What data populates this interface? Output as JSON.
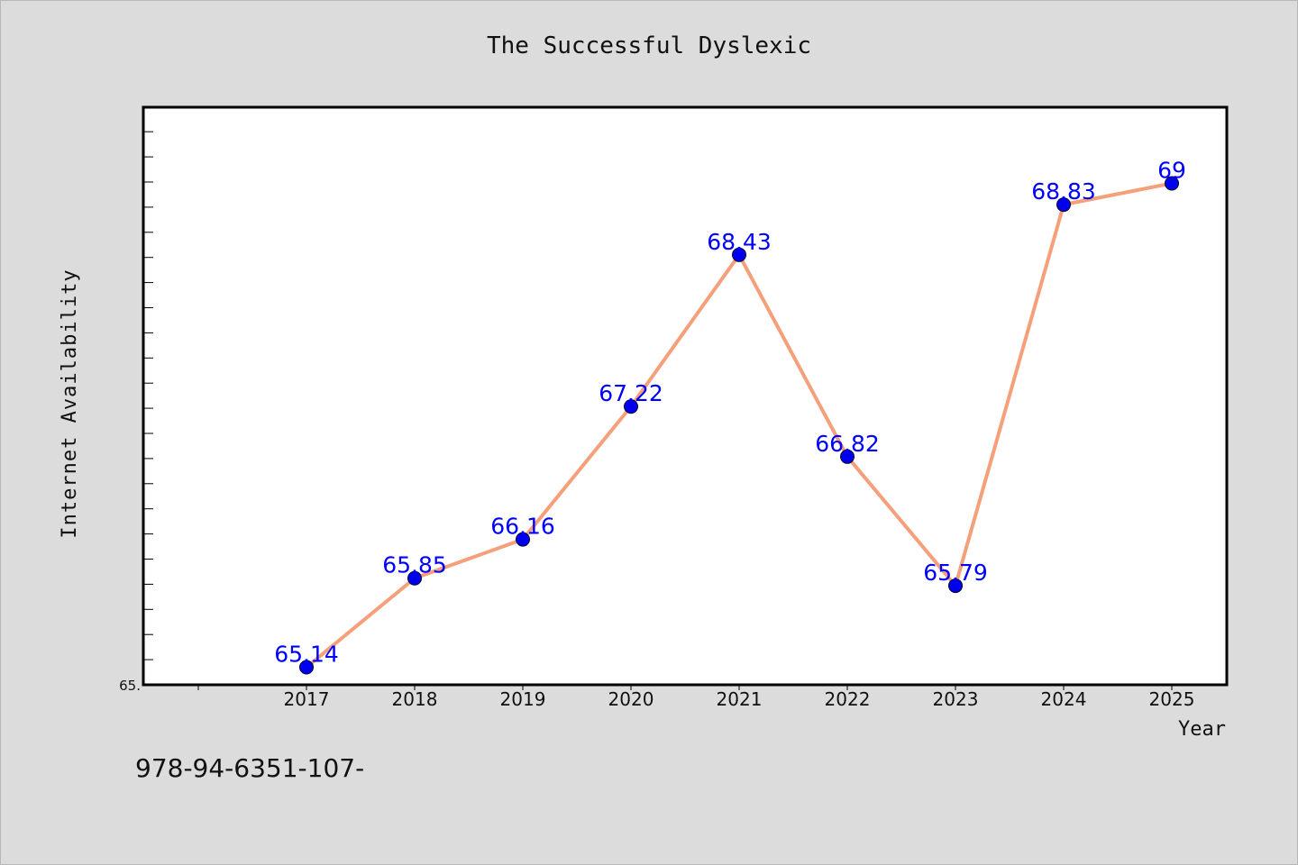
{
  "chart_data": {
    "type": "line",
    "title": "The Successful Dyslexic",
    "xlabel": "Year",
    "ylabel": "Internet Availability",
    "x": [
      "2017",
      "2018",
      "2019",
      "2020",
      "2021",
      "2022",
      "2023",
      "2024",
      "2025"
    ],
    "series": [
      {
        "values": [
          65.14,
          65.85,
          66.16,
          67.22,
          68.43,
          66.82,
          65.79,
          68.83,
          69
        ],
        "labels": [
          "65.14",
          "65.85",
          "66.16",
          "67.22",
          "68.43",
          "66.82",
          "65.79",
          "68.83",
          "69"
        ],
        "line_color": "#f5a07a",
        "marker_color": "#0000ee"
      }
    ],
    "ylim": [
      65,
      69.6
    ],
    "y_tick_labels": [
      "65."
    ],
    "label_color": "#0000ff",
    "grid": false,
    "legend": "none"
  },
  "footnote": "978-94-6351-107-"
}
